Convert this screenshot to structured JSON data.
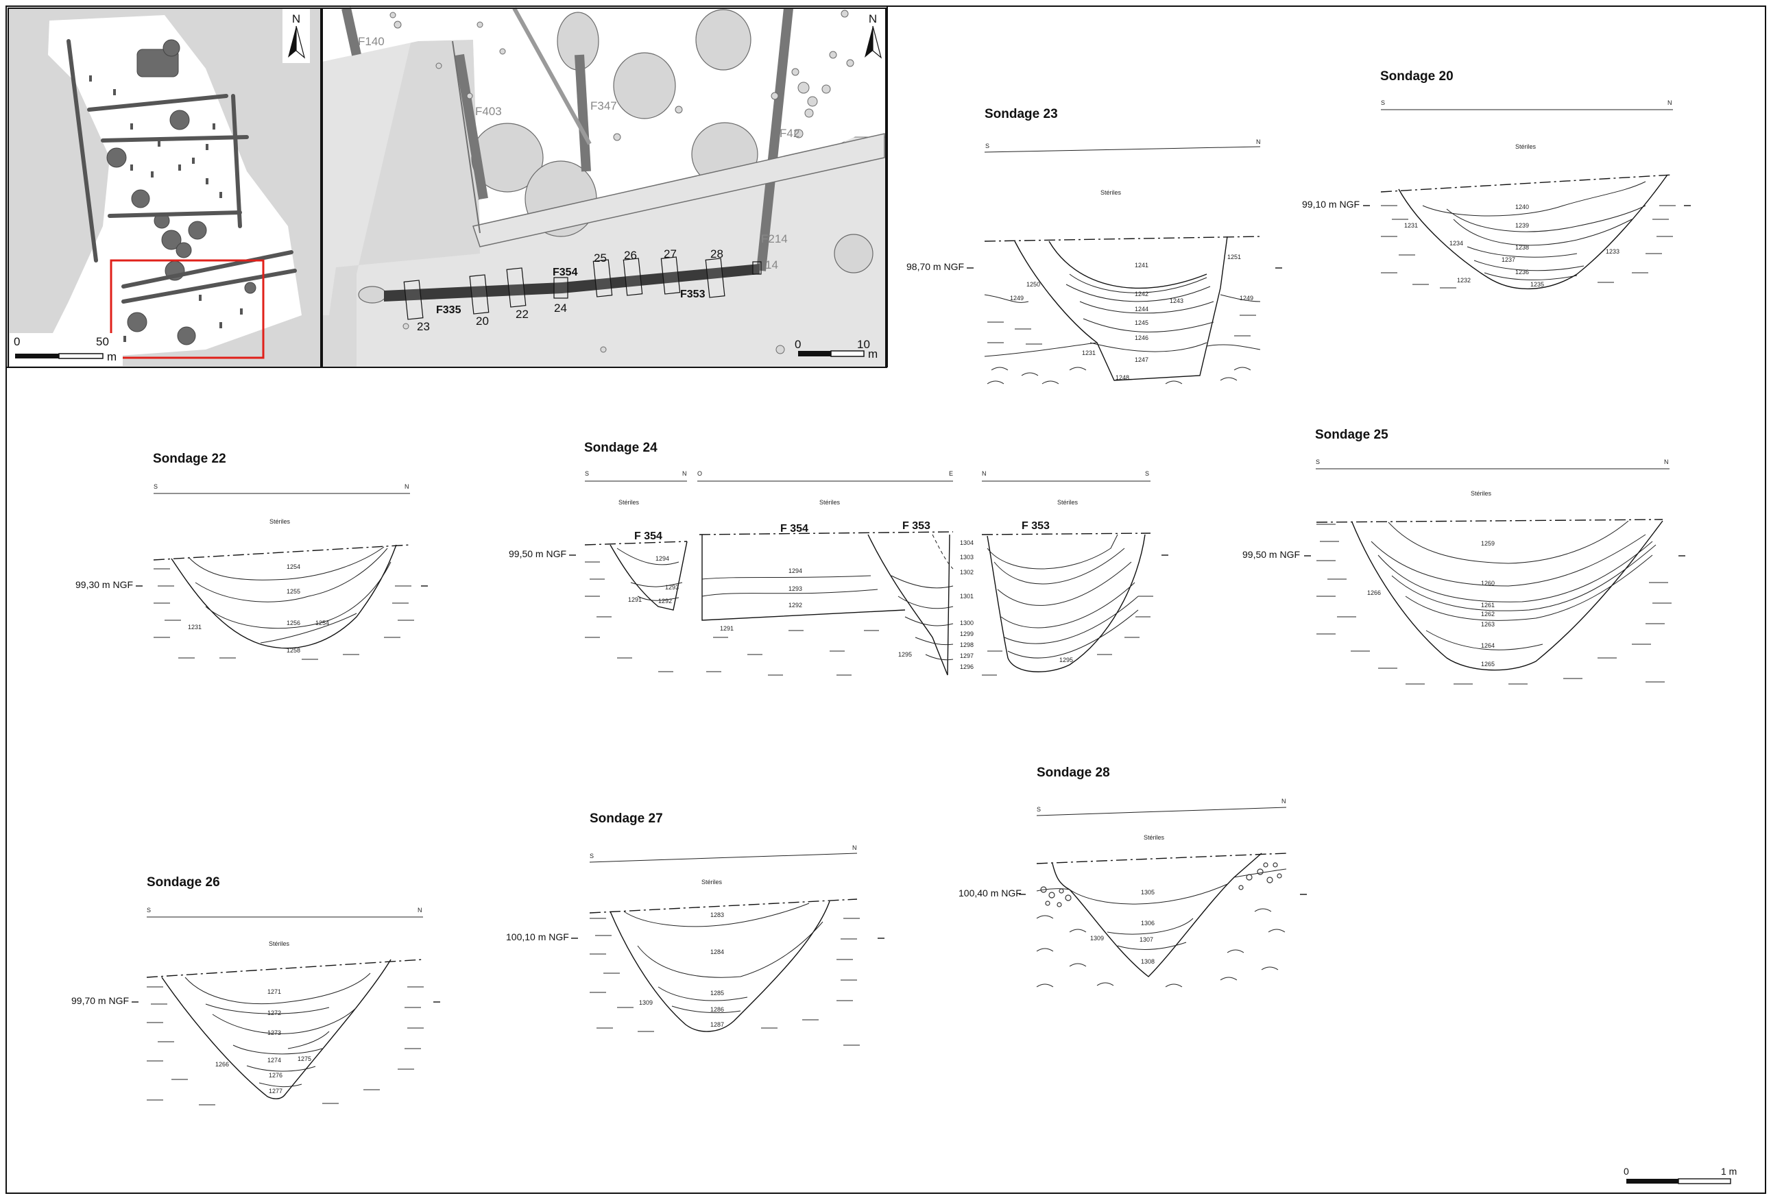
{
  "map_overview": {
    "north": "N",
    "scale_start": "0",
    "scale_end": "50",
    "scale_unit": "m"
  },
  "map_detail": {
    "north": "N",
    "scale_start": "0",
    "scale_end": "10",
    "scale_unit": "m",
    "feature_labels": [
      "F140",
      "F403",
      "F347",
      "F42",
      "F214",
      "14"
    ],
    "feature_labels_bold": [
      "F354",
      "F335",
      "F353"
    ],
    "trench_numbers": [
      "23",
      "20",
      "22",
      "24",
      "25",
      "26",
      "27",
      "28"
    ]
  },
  "section_words": {
    "south": "S",
    "north": "N",
    "west": "O",
    "east": "E",
    "sterile": "Stériles"
  },
  "sections": {
    "s23": {
      "title": "Sondage 23",
      "level": "98,70 m NGF",
      "layers": [
        "1241",
        "1242",
        "1243",
        "1244",
        "1245",
        "1246",
        "1247",
        "1248",
        "1249",
        "1250",
        "1251",
        "1249",
        "1231"
      ]
    },
    "s20": {
      "title": "Sondage 20",
      "level": "99,10 m NGF",
      "layers": [
        "1240",
        "1239",
        "1238",
        "1237",
        "1236",
        "1235",
        "1234",
        "1233",
        "1232",
        "1231"
      ]
    },
    "s22": {
      "title": "Sondage 22",
      "level": "99,30 m NGF",
      "layers": [
        "1254",
        "1255",
        "1256",
        "1254",
        "1258",
        "1231"
      ]
    },
    "s24": {
      "title": "Sondage 24",
      "level": "99,50 m NGF",
      "features": [
        "F 354",
        "F 354",
        "F 353",
        "F 353"
      ],
      "layers_a": [
        "1294",
        "1293",
        "1292",
        "1291"
      ],
      "layers_b": [
        "1294",
        "1293",
        "1292",
        "1291"
      ],
      "layers_c": [
        "1304",
        "1303",
        "1302",
        "1301",
        "1300",
        "1299",
        "1298",
        "1297",
        "1296",
        "1295"
      ],
      "layers_d": [
        "1295"
      ]
    },
    "s25": {
      "title": "Sondage 25",
      "level": "99,50 m NGF",
      "layers": [
        "1259",
        "1260",
        "1261",
        "1262",
        "1263",
        "1264",
        "1265",
        "1266"
      ]
    },
    "s28": {
      "title": "Sondage 28",
      "level": "100,40 m NGF",
      "layers": [
        "1305",
        "1306",
        "1307",
        "1308",
        "1309"
      ]
    },
    "s27": {
      "title": "Sondage 27",
      "level": "100,10 m NGF",
      "layers": [
        "1283",
        "1284",
        "1285",
        "1286",
        "1287",
        "1309"
      ]
    },
    "s26": {
      "title": "Sondage 26",
      "level": "99,70 m NGF",
      "layers": [
        "1271",
        "1272",
        "1273",
        "1274",
        "1275",
        "1276",
        "1277",
        "1266"
      ]
    }
  },
  "section_scale": {
    "start": "0",
    "end": "1 m"
  }
}
